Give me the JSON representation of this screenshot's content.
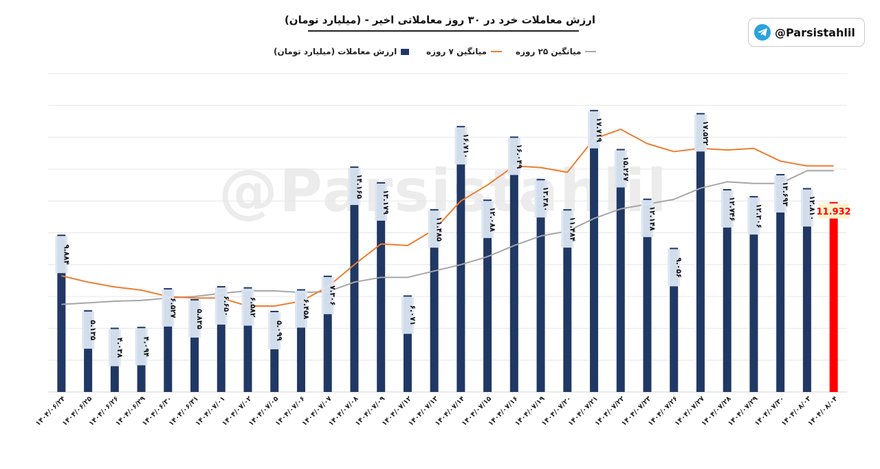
{
  "brand": {
    "handle": "@Parsistahlil",
    "icon": "telegram-icon",
    "icon_color": "#2aa3de"
  },
  "watermark": "@Parsistahlil",
  "chart_data": {
    "type": "bar",
    "title": "ارزش معاملات خرد در ۳۰ روز معاملاتی اخیر - (میلیارد تومان)",
    "ylim": [
      0,
      20
    ],
    "grid": true,
    "legend_position": "top-center",
    "categories": [
      "۱۴۰۴/۰۶/۲۴",
      "۱۴۰۴/۰۶/۲۵",
      "۱۴۰۴/۰۶/۲۶",
      "۱۴۰۴/۰۶/۲۹",
      "۱۴۰۴/۰۶/۳۰",
      "۱۴۰۴/۰۶/۳۱",
      "۱۴۰۴/۰۷/۰۱",
      "۱۴۰۴/۰۷/۰۲",
      "۱۴۰۴/۰۷/۰۵",
      "۱۴۰۴/۰۷/۰۶",
      "۱۴۰۴/۰۷/۰۷",
      "۱۴۰۴/۰۷/۰۸",
      "۱۴۰۴/۰۷/۰۹",
      "۱۴۰۴/۰۷/۱۲",
      "۱۴۰۴/۰۷/۱۳",
      "۱۴۰۴/۰۷/۱۴",
      "۱۴۰۴/۰۷/۱۵",
      "۱۴۰۴/۰۷/۱۶",
      "۱۴۰۴/۰۷/۱۹",
      "۱۴۰۴/۰۷/۲۰",
      "۱۴۰۴/۰۷/۲۱",
      "۱۴۰۴/۰۷/۲۲",
      "۱۴۰۴/۰۷/۲۳",
      "۱۴۰۴/۰۷/۲۶",
      "۱۴۰۴/۰۷/۲۷",
      "۱۴۰۴/۰۷/۲۸",
      "۱۴۰۴/۰۷/۲۹",
      "۱۴۰۴/۰۷/۳۰",
      "۱۴۰۴/۰۸/۰۳",
      "۱۴۰۴/۰۸/۰۴"
    ],
    "series": [
      {
        "name": "ارزش معاملات (میلیارد تومان)",
        "type": "bar",
        "color": "#203864",
        "last_bar_color": "#ff0000",
        "values": [
          9.884,
          5.135,
          4.038,
          4.094,
          6.527,
          5.835,
          6.65,
          6.582,
          5.099,
          6.458,
          7.306,
          14.165,
          13.179,
          6.071,
          11.485,
          16.71,
          12.088,
          16.049,
          13.38,
          11.484,
          17.719,
          15.267,
          12.148,
          9.056,
          17.522,
          12.746,
          12.306,
          13.693,
          12.81,
          11.932
        ],
        "labels": [
          "۹.۸۸۴",
          "۵.۱۳۵",
          "۴.۰۳۸",
          "۴.۰۹۴",
          "۶.۵۲۷",
          "۵.۸۳۵",
          "۶.۶۵۰",
          "۶.۵۸۲",
          "۵.۰۹۹",
          "۶.۴۵۸",
          "۷.۳۰۶",
          "۱۴.۱۶۵",
          "۱۳.۱۷۹",
          "۶.۰۷۱",
          "۱۱.۴۸۵",
          "۱۶.۷۱۰",
          "۱۲.۰۸۸",
          "۱۶.۰۴۹",
          "۱۳.۳۸۰",
          "۱۱.۴۸۴",
          "۱۷.۷۱۹",
          "۱۵.۲۶۷",
          "۱۲.۱۴۸",
          "۹.۰۵۶",
          "۱۷.۵۲۲",
          "۱۲.۷۴۶",
          "۱۲.۳۰۶",
          "۱۳.۶۹۳",
          "۱۲.۸۱۰",
          "11.932"
        ]
      },
      {
        "name": "میانگین ۷ روزه",
        "type": "line",
        "color": "#ed7d31",
        "values": [
          7.3,
          6.9,
          6.6,
          6.4,
          6.0,
          5.9,
          5.9,
          5.4,
          5.4,
          5.7,
          6.6,
          8.0,
          9.3,
          9.2,
          10.2,
          12.0,
          13.0,
          14.2,
          14.1,
          13.8,
          15.9,
          16.5,
          15.6,
          15.1,
          15.3,
          15.2,
          15.3,
          14.5,
          14.2,
          14.2
        ]
      },
      {
        "name": "میانگین ۲۵ روزه",
        "type": "line",
        "color": "#a6a6a6",
        "values": [
          5.5,
          5.6,
          5.7,
          5.75,
          5.9,
          6.0,
          6.2,
          6.35,
          6.35,
          6.25,
          6.3,
          6.9,
          7.2,
          7.2,
          7.6,
          8.0,
          8.5,
          9.2,
          9.8,
          10.1,
          10.9,
          11.5,
          11.8,
          12.1,
          12.8,
          13.2,
          13.1,
          13.1,
          13.9,
          13.9
        ]
      }
    ]
  }
}
